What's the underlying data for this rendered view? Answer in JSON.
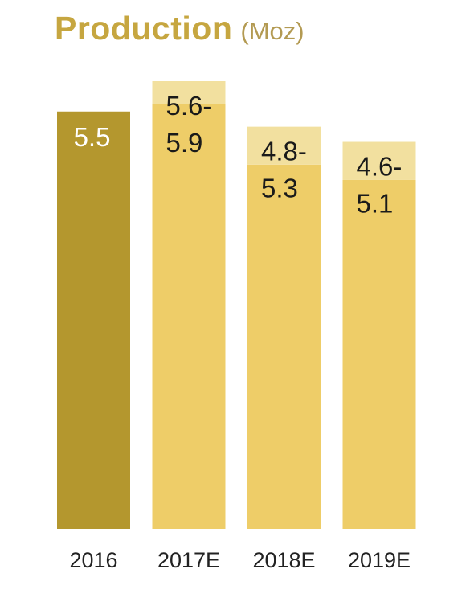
{
  "title": "Production",
  "unit": "(Moz)",
  "colors": {
    "actual": "#b4972e",
    "estimate": "#eecd68",
    "range_band": "#f2e09f",
    "actual_label": "#ffffff",
    "estimate_label": "#1a1a1a"
  },
  "chart_data": {
    "type": "bar",
    "title": "Production",
    "ylabel": "(Moz)",
    "categories": [
      "2016",
      "2017E",
      "2018E",
      "2019E"
    ],
    "ylim": [
      0,
      5.9
    ],
    "bars": [
      {
        "category": "2016",
        "low": 5.5,
        "high": 5.5,
        "label_lines": [
          "5.5"
        ],
        "kind": "actual"
      },
      {
        "category": "2017E",
        "low": 5.6,
        "high": 5.9,
        "label_lines": [
          "5.6-",
          "5.9"
        ],
        "kind": "estimate"
      },
      {
        "category": "2018E",
        "low": 4.8,
        "high": 5.3,
        "label_lines": [
          "4.8-",
          "5.3"
        ],
        "kind": "estimate"
      },
      {
        "category": "2019E",
        "low": 4.6,
        "high": 5.1,
        "label_lines": [
          "4.6-",
          "5.1"
        ],
        "kind": "estimate"
      }
    ],
    "grid": false,
    "legend": "none"
  }
}
